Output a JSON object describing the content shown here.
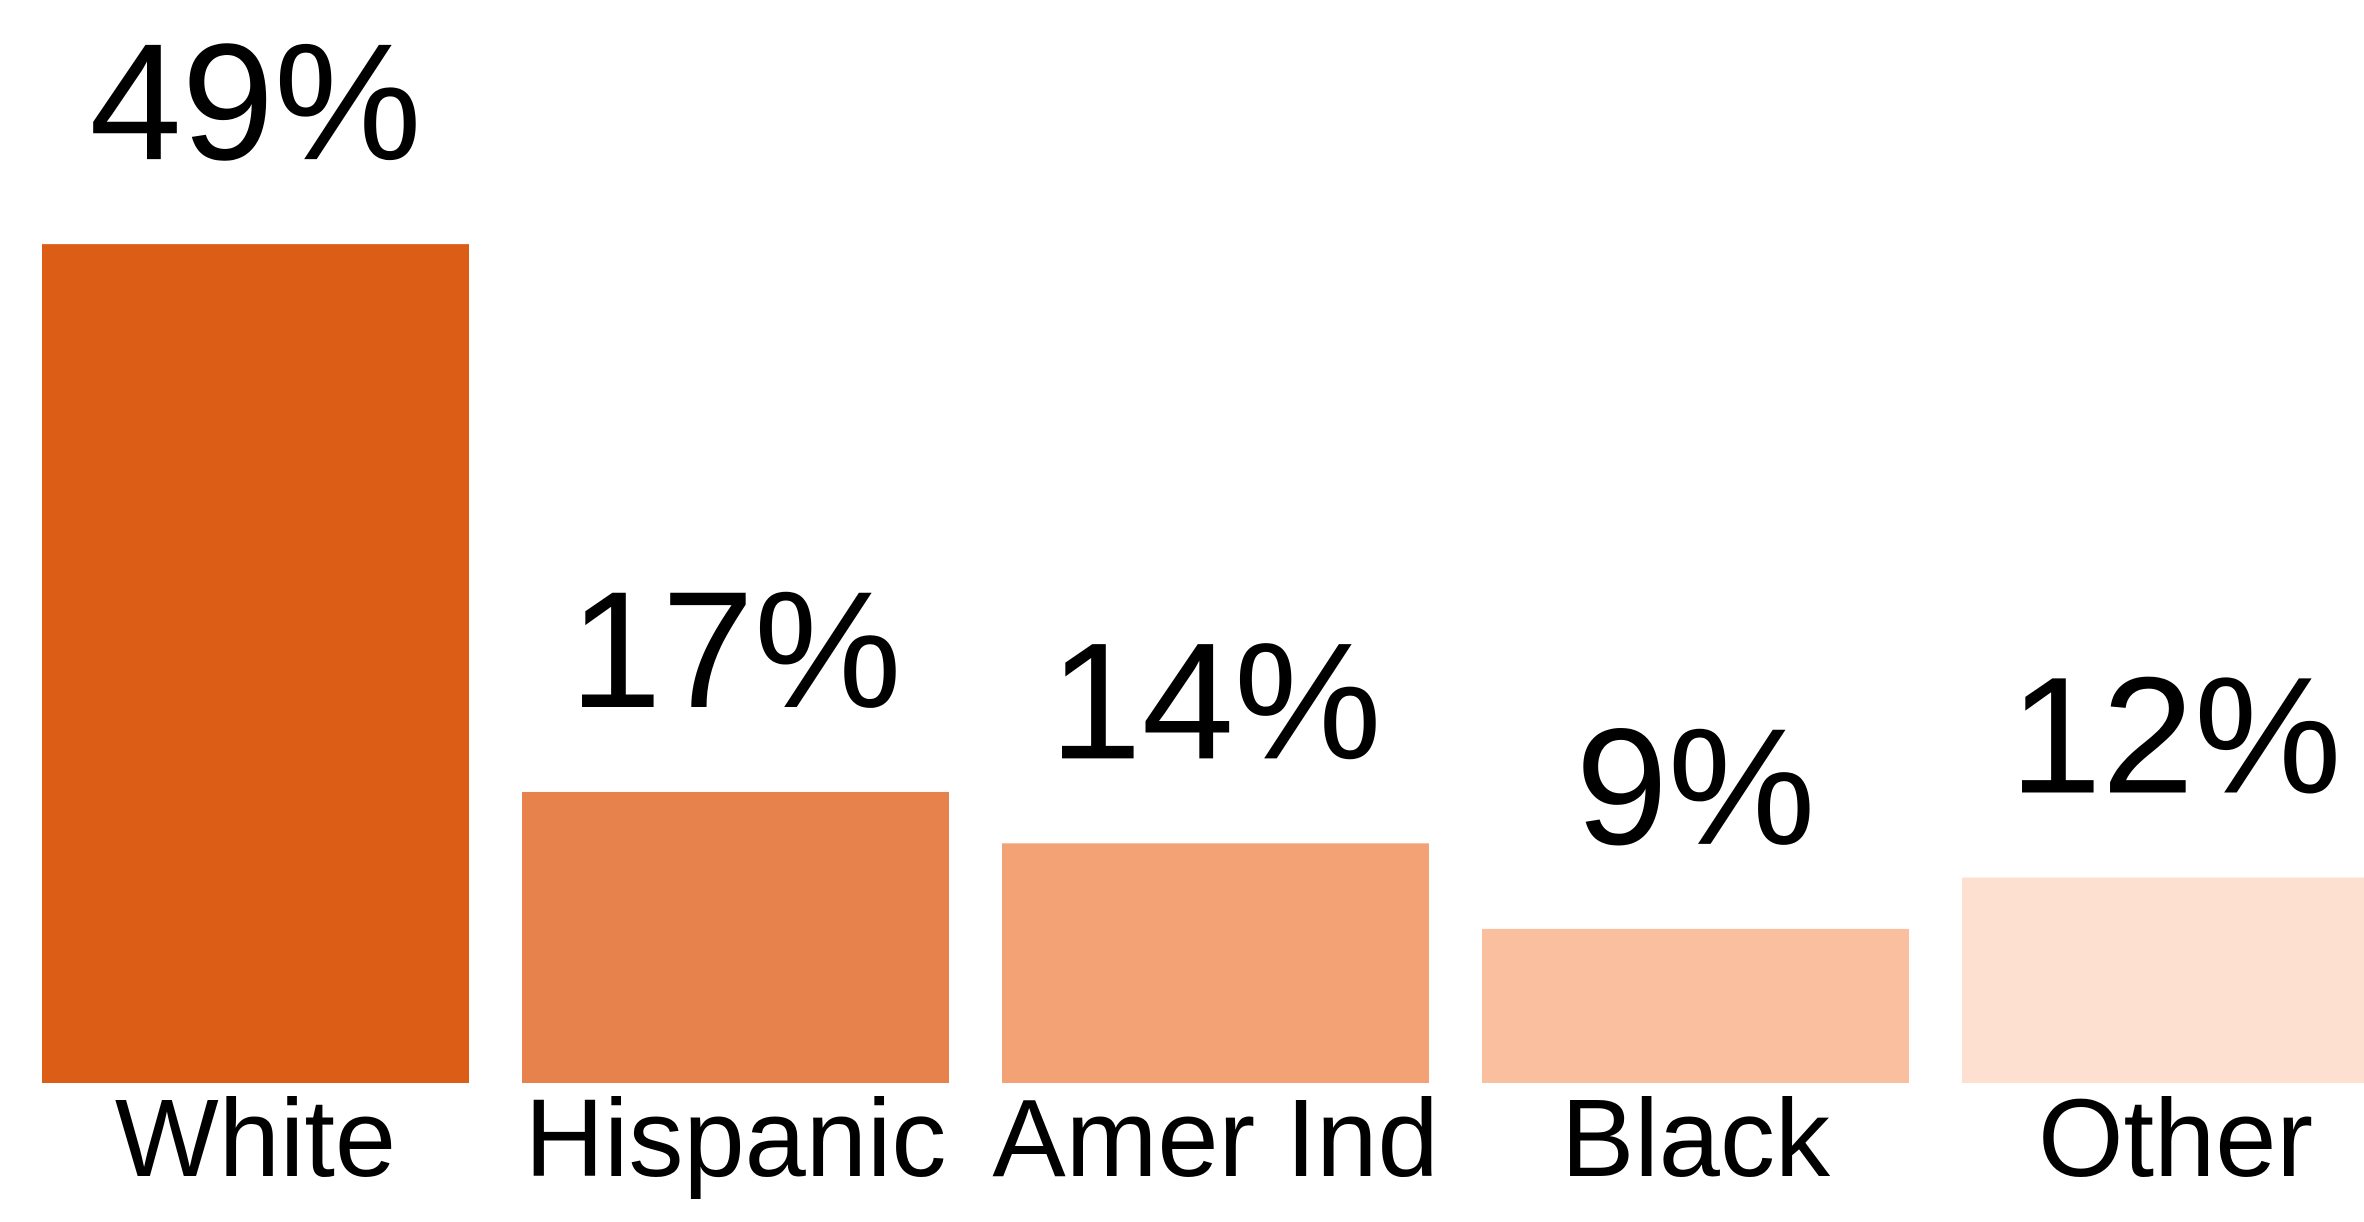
{
  "chart_data": {
    "type": "bar",
    "categories": [
      "White",
      "Hispanic",
      "Amer Ind",
      "Black",
      "Other"
    ],
    "values": [
      49,
      17,
      14,
      9,
      12
    ],
    "value_labels": [
      "49%",
      "17%",
      "14%",
      "9%",
      "12%"
    ],
    "colors": [
      "#dc5e16",
      "#e8824c",
      "#f3a275",
      "#f9bf9f",
      "#fde0d0"
    ]
  }
}
